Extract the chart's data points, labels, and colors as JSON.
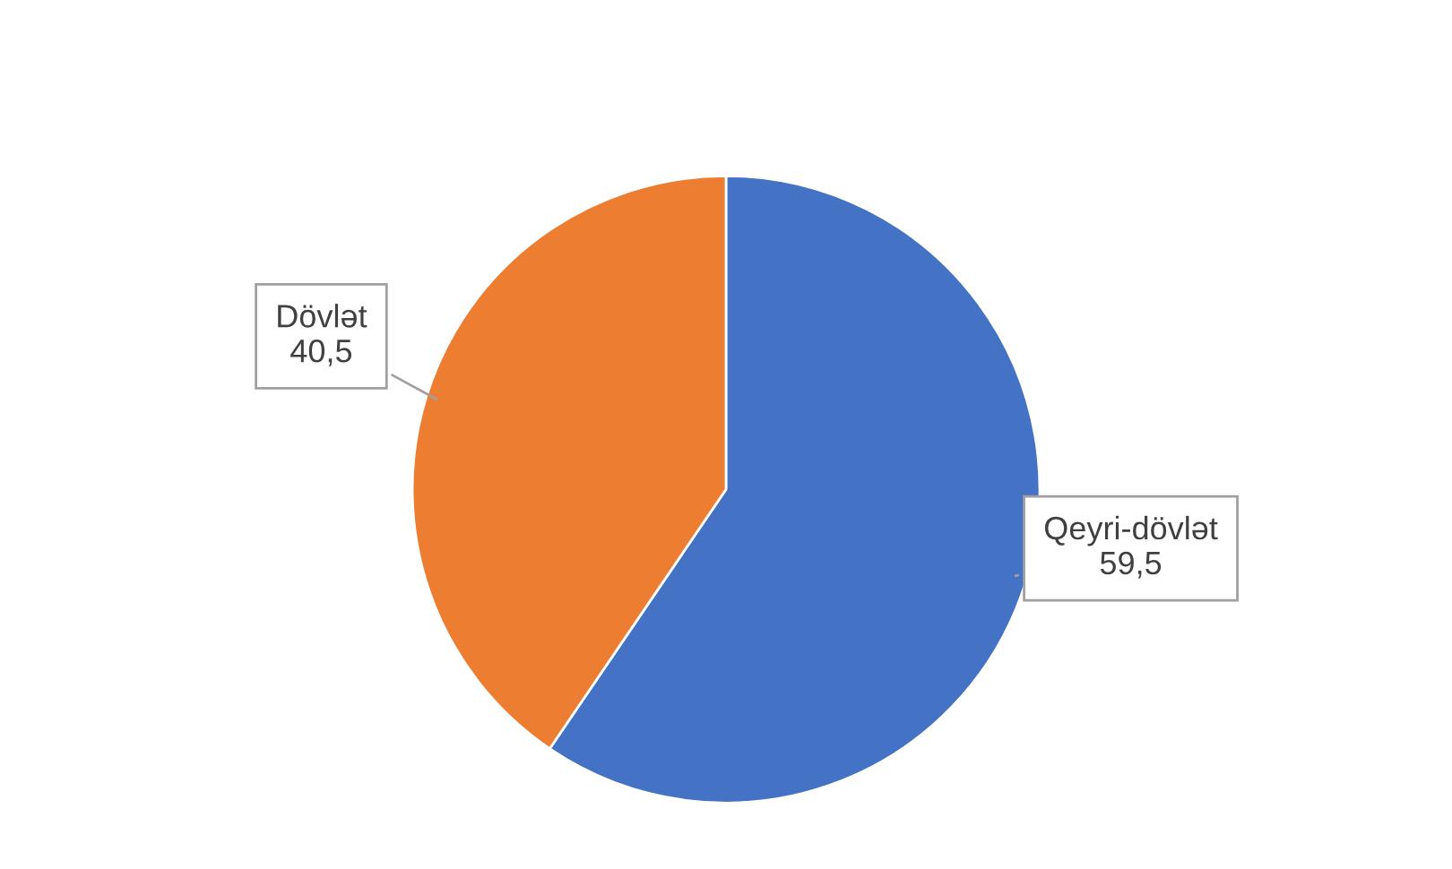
{
  "chart_data": {
    "type": "pie",
    "categories": [
      "Qeyri-dövlət",
      "Dövlət"
    ],
    "values": [
      59.5,
      40.5
    ],
    "colors": [
      "#4472c4",
      "#ed7d31"
    ],
    "value_labels": [
      "59,5",
      "40,5"
    ]
  }
}
